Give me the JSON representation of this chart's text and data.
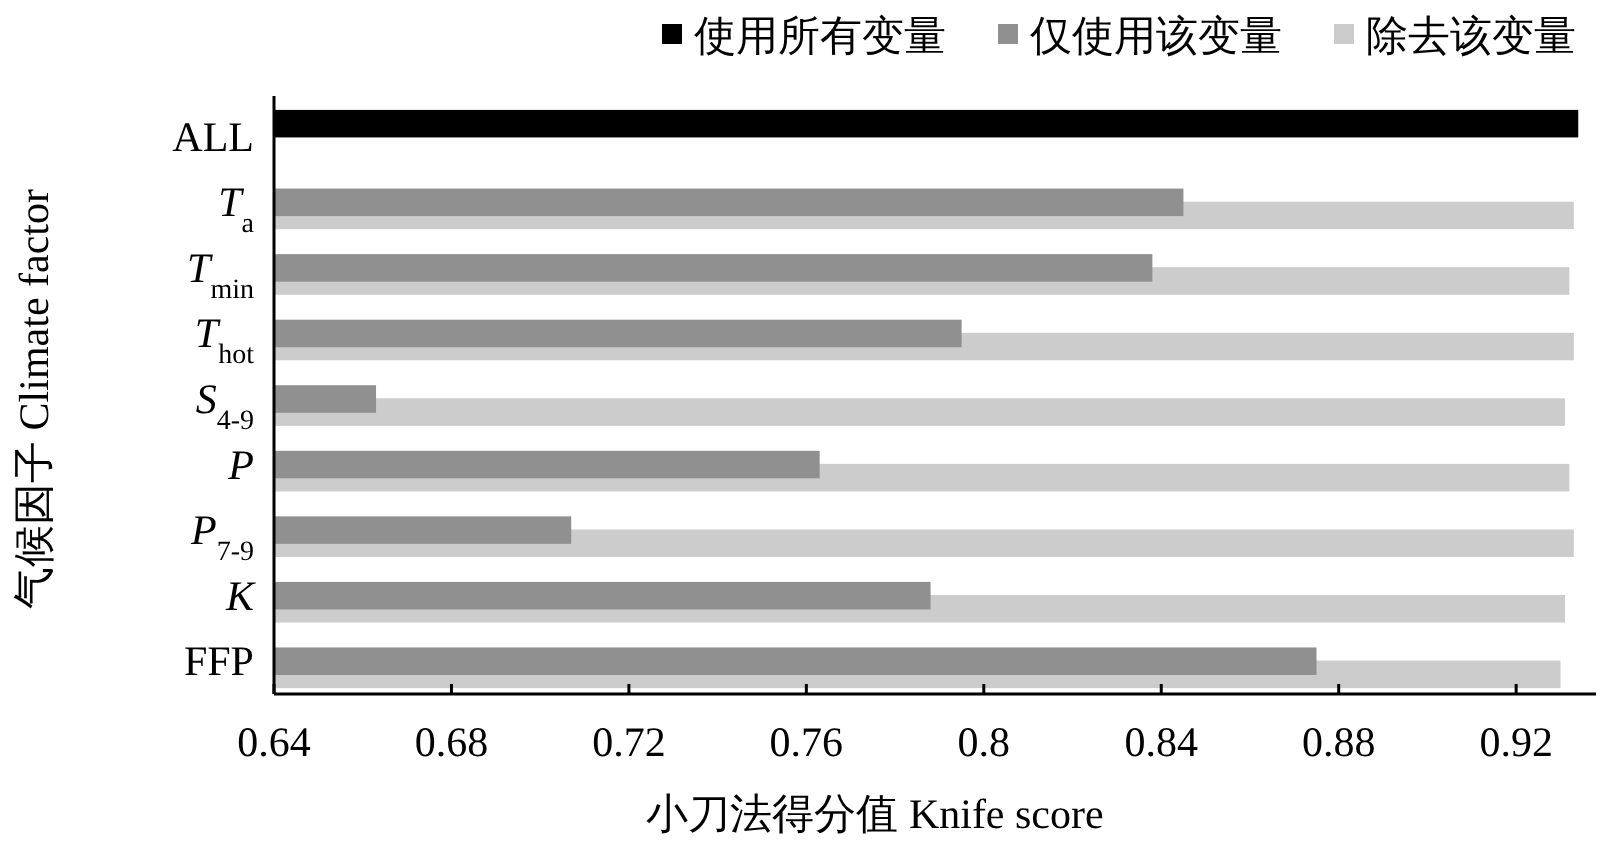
{
  "chart_data": {
    "type": "bar",
    "orientation": "horizontal",
    "xlabel": "小刀法得分值 Knife score",
    "ylabel": "气候因子 Climate factor",
    "categories": [
      "ALL",
      "T$_{a}$",
      "T$_{min}$",
      "T$_{hot}$",
      "S$_{4-9}$",
      "P",
      "P$_{7-9}$",
      "K",
      "FFP"
    ],
    "series": [
      {
        "name": "使用所有变量",
        "color": "#000000",
        "values": [
          0.934,
          null,
          null,
          null,
          null,
          null,
          null,
          null,
          null
        ]
      },
      {
        "name": "仅使用该变量",
        "color": "#909090",
        "values": [
          null,
          0.845,
          0.838,
          0.795,
          0.663,
          0.763,
          0.707,
          0.788,
          0.875
        ]
      },
      {
        "name": "除去该变量",
        "color": "#cccccc",
        "values": [
          null,
          0.933,
          0.932,
          0.933,
          0.931,
          0.932,
          0.933,
          0.931,
          0.93
        ]
      }
    ],
    "xlim": [
      0.64,
      0.938
    ],
    "xticks": [
      0.64,
      0.68,
      0.72,
      0.76,
      0.8,
      0.84,
      0.88,
      0.92
    ],
    "legend": "top right"
  }
}
